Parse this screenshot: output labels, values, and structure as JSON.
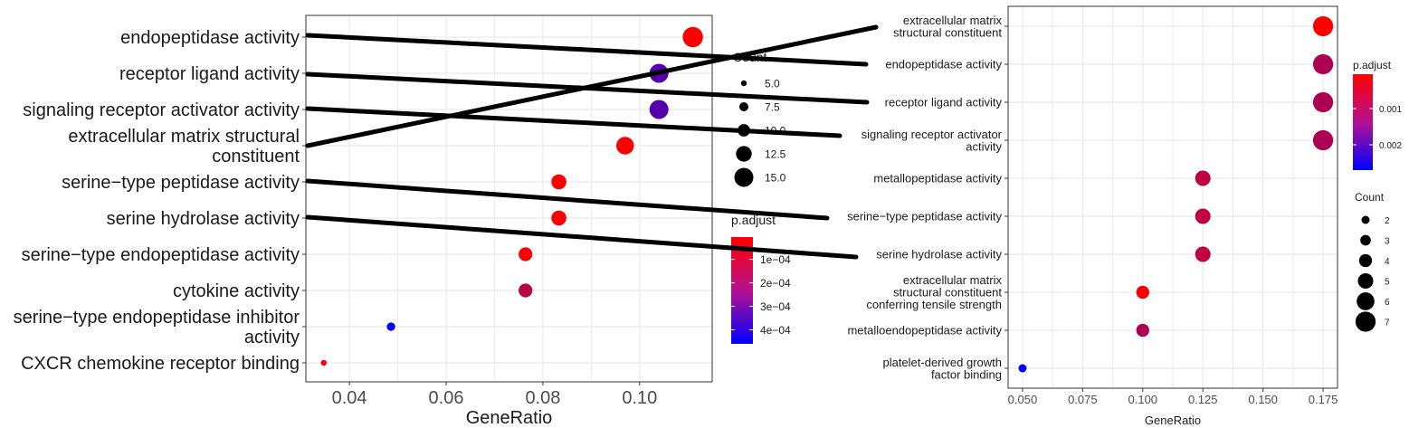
{
  "chart_data": [
    {
      "type": "scatter",
      "xlabel": "GeneRatio",
      "ylabel": "",
      "xlim": [
        0.031,
        0.115
      ],
      "x_ticks": [
        "0.04",
        "0.06",
        "0.08",
        "0.10"
      ],
      "x_tick_values": [
        0.04,
        0.06,
        0.08,
        0.1
      ],
      "categories": [
        "endopeptidase activity",
        "receptor ligand activity",
        "signaling receptor activator activity",
        "extracellular matrix structural\nconstituent",
        "serine−type peptidase activity",
        "serine hydrolase activity",
        "serine−type endopeptidase activity",
        "cytokine activity",
        "serine−type endopeptidase inhibitor\nactivity",
        "CXCR chemokine receptor binding"
      ],
      "points": [
        {
          "category": "endopeptidase activity",
          "x": 0.111,
          "count": 16,
          "p_adjust": 5e-06
        },
        {
          "category": "receptor ligand activity",
          "x": 0.104,
          "count": 15,
          "p_adjust": 0.00031
        },
        {
          "category": "signaling receptor activator activity",
          "x": 0.104,
          "count": 15,
          "p_adjust": 0.00031
        },
        {
          "category": "extracellular matrix structural\nconstituent",
          "x": 0.097,
          "count": 14,
          "p_adjust": 5e-06
        },
        {
          "category": "serine−type peptidase activity",
          "x": 0.0833,
          "count": 12,
          "p_adjust": 1e-05
        },
        {
          "category": "serine hydrolase activity",
          "x": 0.0833,
          "count": 12,
          "p_adjust": 1e-05
        },
        {
          "category": "serine−type endopeptidase activity",
          "x": 0.0764,
          "count": 11,
          "p_adjust": 2e-05
        },
        {
          "category": "cytokine activity",
          "x": 0.0764,
          "count": 11,
          "p_adjust": 0.00013
        },
        {
          "category": "serine−type endopeptidase inhibitor\nactivity",
          "x": 0.0486,
          "count": 7,
          "p_adjust": 0.00046
        },
        {
          "category": "CXCR chemokine receptor binding",
          "x": 0.0347,
          "count": 5,
          "p_adjust": 2e-05
        }
      ],
      "legend_count": {
        "title": "Count",
        "labels": [
          "5.0",
          "7.5",
          "10.0",
          "12.5",
          "15.0"
        ],
        "values": [
          5,
          7.5,
          10,
          12.5,
          15
        ]
      },
      "legend_padjust": {
        "title": "p.adjust",
        "labels": [
          "1e−04",
          "2e−04",
          "3e−04",
          "4e−04"
        ],
        "values": [
          0.0001,
          0.0002,
          0.0003,
          0.0004
        ],
        "range": [
          5e-06,
          0.00046
        ],
        "colors": {
          "low": "#ff0000",
          "high": "#0000ff"
        }
      },
      "legend_placement": "right",
      "grid": true
    },
    {
      "type": "scatter",
      "xlabel": "GeneRatio",
      "ylabel": "",
      "xlim": [
        0.044,
        0.181
      ],
      "x_ticks": [
        "0.050",
        "0.075",
        "0.100",
        "0.125",
        "0.150",
        "0.175"
      ],
      "x_tick_values": [
        0.05,
        0.075,
        0.1,
        0.125,
        0.15,
        0.175
      ],
      "categories": [
        "extracellular matrix\nstructural constituent",
        "endopeptidase activity",
        "receptor ligand activity",
        "signaling receptor activator\nactivity",
        "metallopeptidase activity",
        "serine−type peptidase activity",
        "serine hydrolase activity",
        "extracellular matrix\nstructural constituent\nconferring tensile strength",
        "metalloendopeptidase activity",
        "platelet-derived growth\nfactor binding"
      ],
      "points": [
        {
          "category": "extracellular matrix\nstructural constituent",
          "x": 0.175,
          "count": 7,
          "p_adjust": 5e-05
        },
        {
          "category": "endopeptidase activity",
          "x": 0.175,
          "count": 7,
          "p_adjust": 0.0009
        },
        {
          "category": "receptor ligand activity",
          "x": 0.175,
          "count": 7,
          "p_adjust": 0.0009
        },
        {
          "category": "signaling receptor activator\nactivity",
          "x": 0.175,
          "count": 7,
          "p_adjust": 0.0009
        },
        {
          "category": "metallopeptidase activity",
          "x": 0.125,
          "count": 5,
          "p_adjust": 0.0007
        },
        {
          "category": "serine−type peptidase activity",
          "x": 0.125,
          "count": 5,
          "p_adjust": 0.0007
        },
        {
          "category": "serine hydrolase activity",
          "x": 0.125,
          "count": 5,
          "p_adjust": 0.0007
        },
        {
          "category": "extracellular matrix\nstructural constituent\nconferring tensile strength",
          "x": 0.1,
          "count": 4,
          "p_adjust": 0.0001
        },
        {
          "category": "metalloendopeptidase activity",
          "x": 0.1,
          "count": 4,
          "p_adjust": 0.0009
        },
        {
          "category": "platelet-derived growth\nfactor binding",
          "x": 0.05,
          "count": 2,
          "p_adjust": 0.0027
        }
      ],
      "legend_count": {
        "title": "Count",
        "labels": [
          "2",
          "3",
          "4",
          "5",
          "6",
          "7"
        ],
        "values": [
          2,
          3,
          4,
          5,
          6,
          7
        ]
      },
      "legend_padjust": {
        "title": "p.adjust",
        "labels": [
          "0.001",
          "0.002"
        ],
        "values": [
          0.001,
          0.002
        ],
        "range": [
          5e-05,
          0.0027
        ],
        "colors": {
          "low": "#ff0000",
          "high": "#0000ff"
        }
      },
      "legend_placement": "right",
      "grid": true
    }
  ],
  "connections": [
    {
      "from": "endopeptidase activity",
      "to": "endopeptidase activity"
    },
    {
      "from": "receptor ligand activity",
      "to": "receptor ligand activity"
    },
    {
      "from": "signaling receptor activator activity",
      "to": "signaling receptor activator\nactivity"
    },
    {
      "from": "extracellular matrix structural\nconstituent",
      "to": "extracellular matrix\nstructural constituent"
    },
    {
      "from": "serine−type peptidase activity",
      "to": "serine−type peptidase activity"
    },
    {
      "from": "serine hydrolase activity",
      "to": "serine hydrolase activity"
    }
  ]
}
